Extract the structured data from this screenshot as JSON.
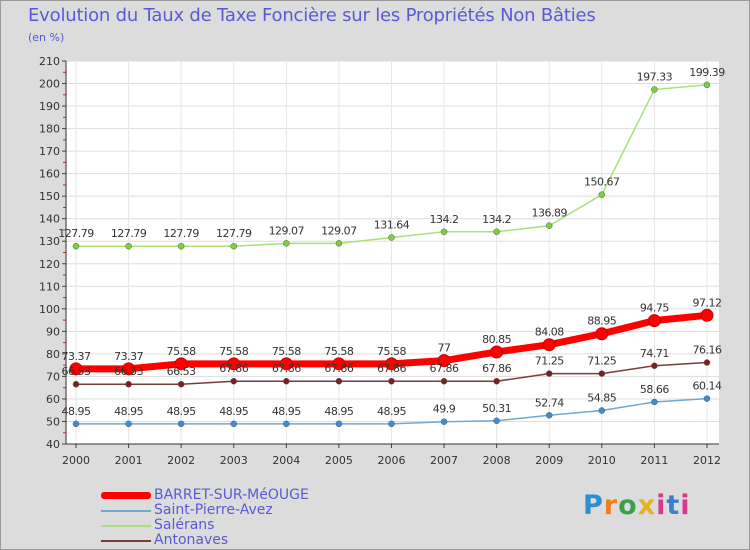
{
  "title": "Evolution du Taux de Taxe Foncière sur les Propriétés Non Bâties",
  "unit": "(en %)",
  "logo": {
    "text": "Proxiti",
    "colors": [
      "#2a8fd0",
      "#ee7d1c",
      "#3aa04a",
      "#e8b21b",
      "#d43a8c",
      "#3b7fd1",
      "#d43a8c"
    ]
  },
  "chart_data": {
    "type": "line",
    "title": "Evolution du Taux de Taxe Foncière sur les Propriétés Non Bâties",
    "ylabel": "(en %)",
    "xlabel": "",
    "x": [
      "2000",
      "2001",
      "2002",
      "2003",
      "2004",
      "2005",
      "2006",
      "2007",
      "2008",
      "2009",
      "2010",
      "2011",
      "2012"
    ],
    "ylim": [
      40,
      210
    ],
    "yticks": [
      40,
      50,
      60,
      70,
      80,
      90,
      100,
      110,
      120,
      130,
      140,
      150,
      160,
      170,
      180,
      190,
      200,
      210
    ],
    "grid": true,
    "legend_position": "bottom-left",
    "series": [
      {
        "name": "BARRET-SUR-MéOUGE",
        "color": "#ff0000",
        "marker_color": "#ff0000",
        "bold": true,
        "values": [
          73.37,
          73.37,
          75.58,
          75.58,
          75.58,
          75.58,
          75.58,
          77,
          80.85,
          84.08,
          88.95,
          94.75,
          97.12
        ],
        "labels": [
          "73.37",
          "73.37",
          "75.58",
          "75.58",
          "75.58",
          "75.58",
          "75.58",
          "77",
          "80.85",
          "84.08",
          "88.95",
          "94.75",
          "97.12"
        ]
      },
      {
        "name": "Saint-Pierre-Avez",
        "color": "#6fa8d0",
        "marker_color": "#3b8fd8",
        "bold": false,
        "values": [
          48.95,
          48.95,
          48.95,
          48.95,
          48.95,
          48.95,
          48.95,
          49.9,
          50.31,
          52.74,
          54.85,
          58.66,
          60.14
        ],
        "labels": [
          "48.95",
          "48.95",
          "48.95",
          "48.95",
          "48.95",
          "48.95",
          "48.95",
          "49.9",
          "50.31",
          "52.74",
          "54.85",
          "58.66",
          "60.14"
        ]
      },
      {
        "name": "Salérans",
        "color": "#a9e07a",
        "marker_color": "#7cd03a",
        "bold": false,
        "values": [
          127.79,
          127.79,
          127.79,
          127.79,
          129.07,
          129.07,
          131.64,
          134.2,
          134.2,
          136.89,
          150.67,
          197.33,
          199.39
        ],
        "labels": [
          "127.79",
          "127.79",
          "127.79",
          "127.79",
          "129.07",
          "129.07",
          "131.64",
          "134.2",
          "134.2",
          "136.89",
          "150.67",
          "197.33",
          "199.39"
        ]
      },
      {
        "name": "Antonaves",
        "color": "#7a3b3b",
        "marker_color": "#7a2020",
        "bold": false,
        "values": [
          66.53,
          66.53,
          66.53,
          67.86,
          67.86,
          67.86,
          67.86,
          67.86,
          67.86,
          71.25,
          71.25,
          74.71,
          76.16
        ],
        "labels": [
          "66.53",
          "66.53",
          "66.53",
          "67.86",
          "67.86",
          "67.86",
          "67.86",
          "67.86",
          "67.86",
          "71.25",
          "71.25",
          "74.71",
          "76.16"
        ]
      }
    ]
  }
}
